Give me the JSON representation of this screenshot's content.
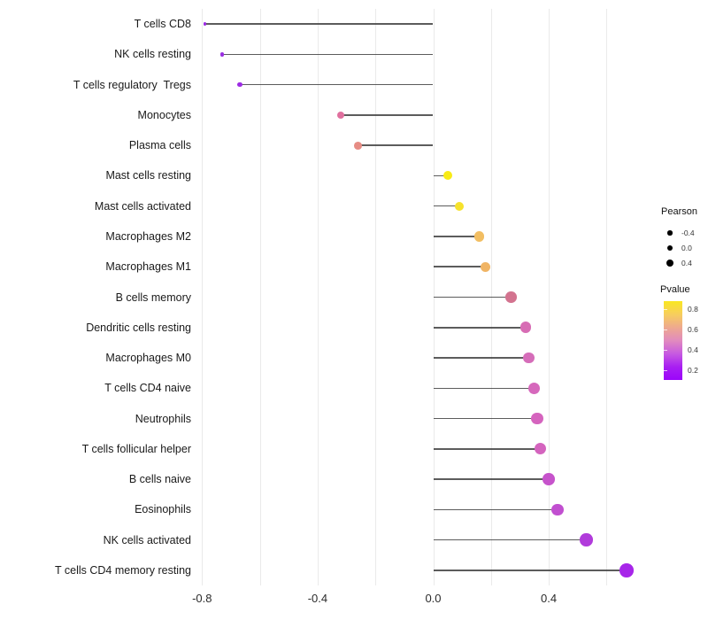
{
  "chart_data": {
    "type": "lollipop",
    "title": "",
    "xlabel": "",
    "ylabel": "",
    "x_axis": {
      "ticks": [
        -0.8,
        -0.4,
        0.0,
        0.4
      ],
      "tick_labels": [
        "-0.8",
        "-0.4",
        "0.0",
        "0.4"
      ],
      "range": [
        -0.82,
        0.76
      ],
      "gridlines": [
        -0.8,
        -0.6,
        -0.4,
        -0.2,
        0.0,
        0.2,
        0.4,
        0.6
      ],
      "grid": "vertical-only"
    },
    "baseline": 0.0,
    "points": [
      {
        "label": "T cells CD8",
        "pearson": -0.79,
        "color": "#9B2BE3",
        "radius": 1.7
      },
      {
        "label": "NK cells resting",
        "pearson": -0.73,
        "color": "#9A2FE2",
        "radius": 2.3
      },
      {
        "label": "T cells regulatory  Tregs",
        "pearson": -0.67,
        "color": "#9D2BE4",
        "radius": 2.8
      },
      {
        "label": "Monocytes",
        "pearson": -0.32,
        "color": "#E0709E",
        "radius": 4.3
      },
      {
        "label": "Plasma cells",
        "pearson": -0.26,
        "color": "#E68C84",
        "radius": 4.4
      },
      {
        "label": "Mast cells resting",
        "pearson": 0.05,
        "color": "#F8EB16",
        "radius": 5.0
      },
      {
        "label": "Mast cells activated",
        "pearson": 0.09,
        "color": "#F6E22C",
        "radius": 5.2
      },
      {
        "label": "Macrophages M2",
        "pearson": 0.16,
        "color": "#F2BE62",
        "radius": 5.6
      },
      {
        "label": "Macrophages M1",
        "pearson": 0.18,
        "color": "#F0B464",
        "radius": 5.7
      },
      {
        "label": "B cells memory",
        "pearson": 0.27,
        "color": "#D3738F",
        "radius": 6.2
      },
      {
        "label": "Dendritic cells resting",
        "pearson": 0.32,
        "color": "#D76CB4",
        "radius": 6.4
      },
      {
        "label": "Macrophages M0",
        "pearson": 0.33,
        "color": "#D56DB9",
        "radius": 6.4
      },
      {
        "label": "T cells CD4 naive",
        "pearson": 0.35,
        "color": "#D668BC",
        "radius": 6.5
      },
      {
        "label": "Neutrophils",
        "pearson": 0.36,
        "color": "#D564BE",
        "radius": 6.6
      },
      {
        "label": "T cells follicular helper",
        "pearson": 0.37,
        "color": "#D464BE",
        "radius": 6.6
      },
      {
        "label": "B cells naive",
        "pearson": 0.4,
        "color": "#C653CB",
        "radius": 6.7
      },
      {
        "label": "Eosinophils",
        "pearson": 0.43,
        "color": "#C14FD0",
        "radius": 6.8
      },
      {
        "label": "NK cells activated",
        "pearson": 0.53,
        "color": "#B13BDB",
        "radius": 7.2
      },
      {
        "label": "T cells CD4 memory resting",
        "pearson": 0.67,
        "color": "#A726E9",
        "radius": 7.8
      }
    ],
    "legend_size": {
      "title": "Pearson",
      "dot_color": "#000000",
      "entries": [
        {
          "label": "-0.4",
          "radius": 2.7
        },
        {
          "label": "0.0",
          "radius": 3.4
        },
        {
          "label": "0.4",
          "radius": 4.1
        }
      ]
    },
    "legend_colorbar": {
      "title": "Pvalue",
      "tick_labels": [
        "0.8",
        "0.6",
        "0.4",
        "0.2"
      ],
      "gradient_top_to_bottom": [
        "#F9E721",
        "#F7CE5E",
        "#EEA98F",
        "#E18BBE",
        "#C75AE1",
        "#A81FF2",
        "#9B05FA"
      ]
    }
  },
  "style": {
    "background": "#FFFFFF",
    "stem_color": "#3F3F3F",
    "grid_color": "#EAEAEA",
    "axis_text_color": "#2B2B2B",
    "label_text_color": "#1A1A1A"
  }
}
